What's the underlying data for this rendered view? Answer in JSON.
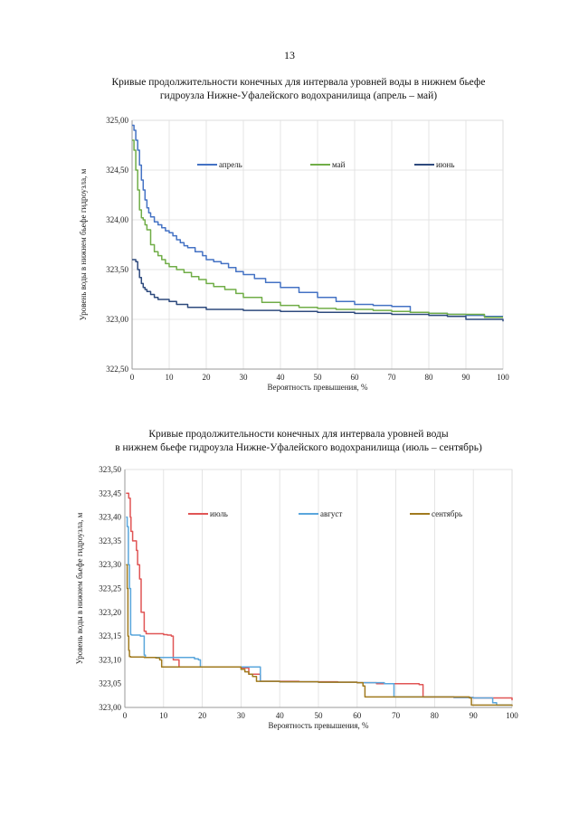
{
  "page": {
    "number": "13"
  },
  "chart_data": [
    {
      "type": "line",
      "title_lines": [
        "Кривые продолжительности конечных для интервала уровней воды в нижнем бьефе",
        "гидроузла Нижне-Уфалейского водохранилища (апрель – май)"
      ],
      "xlabel": "Вероятность превышения, %",
      "ylabel": "Уровень воды в нижнем бьефе гидроузла, м",
      "xlim": [
        0,
        100
      ],
      "ylim": [
        322.5,
        325.0
      ],
      "x_ticks": [
        "0",
        "10",
        "20",
        "30",
        "40",
        "50",
        "60",
        "70",
        "80",
        "90",
        "100"
      ],
      "y_ticks": [
        "322,50",
        "323,00",
        "323,50",
        "324,00",
        "324,50",
        "325,00"
      ],
      "grid": "horizontal",
      "series": [
        {
          "name": "апрель",
          "color": "#4472c4",
          "x": [
            0,
            0.5,
            1,
            1.5,
            2,
            2.5,
            3,
            3.5,
            4,
            4.5,
            5,
            6,
            7,
            8,
            9,
            10,
            11,
            12,
            13,
            14,
            15,
            17,
            19,
            20,
            22,
            24,
            26,
            28,
            30,
            33,
            36,
            40,
            45,
            50,
            55,
            60,
            65,
            70,
            75,
            80,
            85,
            90,
            95,
            100
          ],
          "values": [
            324.95,
            324.9,
            324.8,
            324.7,
            324.55,
            324.4,
            324.3,
            324.2,
            324.12,
            324.07,
            324.03,
            323.98,
            323.95,
            323.92,
            323.89,
            323.87,
            323.84,
            323.8,
            323.77,
            323.74,
            323.72,
            323.68,
            323.64,
            323.6,
            323.58,
            323.56,
            323.52,
            323.48,
            323.45,
            323.41,
            323.37,
            323.32,
            323.27,
            323.22,
            323.18,
            323.15,
            323.14,
            323.13,
            323.07,
            323.06,
            323.05,
            323.04,
            323.03,
            323.03
          ]
        },
        {
          "name": "май",
          "color": "#70ad47",
          "x": [
            0,
            0.5,
            1,
            1.5,
            2,
            2.5,
            3,
            3.5,
            4,
            5,
            6,
            7,
            8,
            9,
            10,
            12,
            14,
            16,
            18,
            20,
            22,
            25,
            28,
            30,
            35,
            40,
            45,
            50,
            55,
            60,
            65,
            70,
            75,
            80,
            85,
            90,
            95,
            100
          ],
          "values": [
            324.8,
            324.7,
            324.5,
            324.3,
            324.1,
            324.02,
            324.0,
            323.95,
            323.9,
            323.75,
            323.68,
            323.64,
            323.6,
            323.56,
            323.53,
            323.5,
            323.47,
            323.43,
            323.4,
            323.36,
            323.33,
            323.3,
            323.26,
            323.22,
            323.17,
            323.14,
            323.12,
            323.11,
            323.1,
            323.1,
            323.09,
            323.08,
            323.07,
            323.06,
            323.05,
            323.05,
            323.02,
            323.02
          ]
        },
        {
          "name": "июнь",
          "color": "#2e4a7d",
          "x": [
            0,
            0.5,
            1,
            1.5,
            2,
            2.5,
            3,
            3.5,
            4,
            5,
            6,
            7,
            8,
            10,
            12,
            15,
            20,
            25,
            30,
            35,
            40,
            45,
            50,
            55,
            60,
            65,
            70,
            75,
            80,
            85,
            90,
            95,
            100
          ],
          "values": [
            323.6,
            323.6,
            323.58,
            323.5,
            323.42,
            323.36,
            323.32,
            323.3,
            323.28,
            323.25,
            323.22,
            323.2,
            323.2,
            323.18,
            323.15,
            323.12,
            323.1,
            323.1,
            323.09,
            323.09,
            323.08,
            323.08,
            323.07,
            323.07,
            323.06,
            323.06,
            323.05,
            323.05,
            323.04,
            323.03,
            323.0,
            323.0,
            322.98
          ]
        }
      ]
    },
    {
      "type": "line",
      "title_lines": [
        "Кривые продолжительности конечных для интервала уровней воды",
        "в нижнем бьефе гидроузла Нижне-Уфалейского водохранилища (июль – сентябрь)"
      ],
      "xlabel": "Вероятность превышения, %",
      "ylabel": "Уровень воды в нижнем бьефе гидроузла, м",
      "xlim": [
        0,
        100
      ],
      "ylim": [
        323.0,
        323.5
      ],
      "x_ticks": [
        "0",
        "10",
        "20",
        "30",
        "40",
        "50",
        "60",
        "70",
        "80",
        "90",
        "100"
      ],
      "y_ticks": [
        "323,00",
        "323,05",
        "323,10",
        "323,15",
        "323,20",
        "323,25",
        "323,30",
        "323,35",
        "323,40",
        "323,45",
        "323,50"
      ],
      "grid": "none",
      "series": [
        {
          "name": "июль",
          "color": "#e05555",
          "x": [
            0.3,
            0.8,
            1.0,
            1.4,
            1.6,
            2.0,
            2.4,
            3.0,
            3.3,
            3.8,
            4.2,
            5.0,
            5.5,
            8.0,
            10,
            11,
            12,
            12.5,
            13.5,
            14,
            15,
            20,
            30,
            32,
            35,
            40,
            45,
            55,
            60,
            65,
            70,
            74,
            76,
            77,
            80,
            85,
            90,
            95,
            99,
            100
          ],
          "values": [
            323.45,
            323.45,
            323.44,
            323.4,
            323.37,
            323.35,
            323.35,
            323.33,
            323.3,
            323.27,
            323.2,
            323.16,
            323.155,
            323.155,
            323.153,
            323.152,
            323.15,
            323.1,
            323.1,
            323.085,
            323.085,
            323.085,
            323.083,
            323.07,
            323.055,
            323.055,
            323.054,
            323.053,
            323.052,
            323.05,
            323.05,
            323.05,
            323.048,
            323.022,
            323.022,
            323.021,
            323.02,
            323.02,
            323.02,
            323.015
          ]
        },
        {
          "name": "август",
          "color": "#5aa6dc",
          "x": [
            0.3,
            0.6,
            0.9,
            1.2,
            1.5,
            1.8,
            4.0,
            5.0,
            5.3,
            10,
            15,
            18,
            19,
            19.5,
            25,
            30,
            33,
            34,
            35,
            36,
            40,
            50,
            60,
            67,
            69,
            69.5,
            75,
            80,
            85,
            90,
            95,
            96,
            100
          ],
          "values": [
            323.4,
            323.38,
            323.3,
            323.25,
            323.153,
            323.152,
            323.15,
            323.11,
            323.105,
            323.105,
            323.105,
            323.102,
            323.1,
            323.085,
            323.085,
            323.085,
            323.085,
            323.085,
            323.055,
            323.055,
            323.054,
            323.053,
            323.052,
            323.05,
            323.05,
            323.022,
            323.022,
            323.022,
            323.021,
            323.02,
            323.01,
            323.005,
            323.005
          ]
        },
        {
          "name": "сентябрь",
          "color": "#a07a1e",
          "x": [
            0.3,
            0.6,
            0.8,
            1.0,
            1.2,
            1.5,
            5,
            8,
            9,
            9.5,
            15,
            20,
            25,
            28,
            30,
            31,
            32,
            33,
            34,
            36,
            40,
            50,
            60,
            61.5,
            62,
            70,
            75,
            80,
            85,
            89,
            89.5,
            95,
            100
          ],
          "values": [
            323.3,
            323.25,
            323.15,
            323.12,
            323.107,
            323.106,
            323.105,
            323.104,
            323.1,
            323.085,
            323.085,
            323.085,
            323.085,
            323.085,
            323.08,
            323.075,
            323.07,
            323.065,
            323.055,
            323.055,
            323.054,
            323.053,
            323.052,
            323.045,
            323.022,
            323.022,
            323.022,
            323.022,
            323.022,
            323.02,
            323.005,
            323.005,
            323.003
          ]
        }
      ]
    }
  ]
}
